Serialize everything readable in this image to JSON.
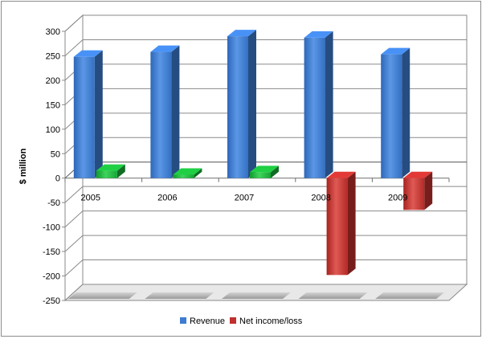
{
  "chart_data": {
    "type": "bar",
    "style": "3d-clustered-column",
    "title": "",
    "xlabel": "",
    "ylabel": "$ million",
    "ylim": [
      -250,
      300
    ],
    "yticks": [
      300,
      250,
      200,
      150,
      100,
      50,
      0,
      -50,
      -100,
      -150,
      -200,
      -250
    ],
    "grid": true,
    "legend_position": "bottom",
    "categories": [
      "2005",
      "2006",
      "2007",
      "2008",
      "2009"
    ],
    "series": [
      {
        "name": "Revenue",
        "color": "#3d7cd1",
        "values": [
          248,
          258,
          290,
          287,
          253
        ]
      },
      {
        "name": "Net income/loss",
        "color": "#1ab03a",
        "values": [
          15,
          7,
          12,
          -198,
          -65
        ]
      }
    ],
    "negative_color": "#c0302e"
  }
}
